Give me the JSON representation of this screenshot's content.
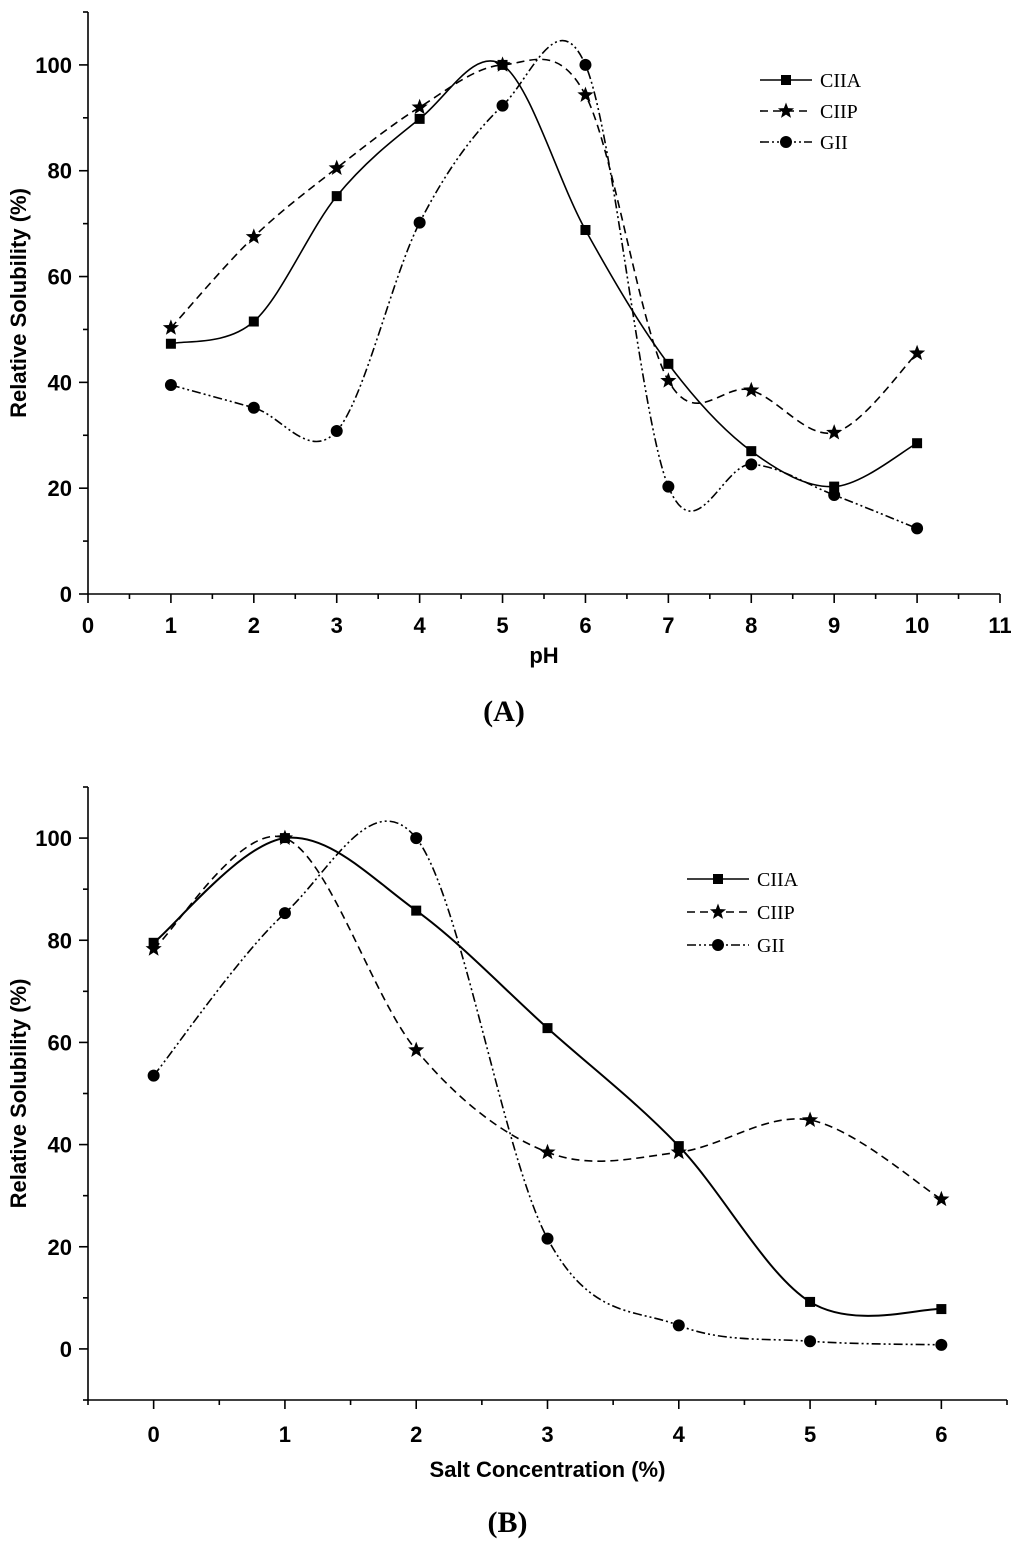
{
  "chart_data": [
    {
      "type": "line",
      "panel_label": "(A)",
      "xlabel": "pH",
      "ylabel": "Relative Solubility (%)",
      "xlim": [
        0,
        11
      ],
      "ylim": [
        0,
        110
      ],
      "xticks": [
        "0",
        "1",
        "2",
        "3",
        "4",
        "5",
        "6",
        "7",
        "8",
        "9",
        "10",
        "11"
      ],
      "yticks": [
        "0",
        "20",
        "40",
        "60",
        "80",
        "100"
      ],
      "x": [
        1,
        2,
        3,
        4,
        5,
        6,
        7,
        8,
        9,
        10
      ],
      "series": [
        {
          "name": "CIIA",
          "marker": "square",
          "dash": "solid",
          "values": [
            47.3,
            51.5,
            75.2,
            89.8,
            100,
            68.8,
            43.5,
            27.0,
            20.3,
            28.5
          ]
        },
        {
          "name": "CIIP",
          "marker": "star",
          "dash": "dashed",
          "values": [
            50.3,
            67.5,
            80.5,
            92.0,
            100,
            94.3,
            40.3,
            38.5,
            30.5,
            45.5
          ]
        },
        {
          "name": "GII",
          "marker": "circle",
          "dash": "dashdotdot",
          "values": [
            39.5,
            35.2,
            30.8,
            70.2,
            92.3,
            100,
            20.3,
            24.5,
            18.7,
            12.4
          ]
        }
      ],
      "legend": "top-right"
    },
    {
      "type": "line",
      "panel_label": "(B)",
      "xlabel": "Salt Concentration (%)",
      "ylabel": "Relative Solubility (%)",
      "xlim": [
        -0.5,
        6.5
      ],
      "ylim": [
        -10,
        110
      ],
      "xticks": [
        "0",
        "1",
        "2",
        "3",
        "4",
        "5",
        "6"
      ],
      "yticks": [
        "0",
        "20",
        "40",
        "60",
        "80",
        "100"
      ],
      "x": [
        0,
        1,
        2,
        3,
        4,
        5,
        6
      ],
      "series": [
        {
          "name": "CIIA",
          "marker": "square",
          "dash": "solid",
          "values": [
            79.5,
            100,
            85.8,
            62.8,
            39.7,
            9.2,
            7.8
          ]
        },
        {
          "name": "CIIP",
          "marker": "star",
          "dash": "dashed",
          "values": [
            78.3,
            100,
            58.5,
            38.5,
            38.5,
            44.8,
            29.3
          ]
        },
        {
          "name": "GII",
          "marker": "circle",
          "dash": "dashdotdot",
          "values": [
            53.5,
            85.3,
            100,
            21.6,
            4.6,
            1.5,
            0.8
          ]
        }
      ],
      "legend": "top-right"
    }
  ]
}
